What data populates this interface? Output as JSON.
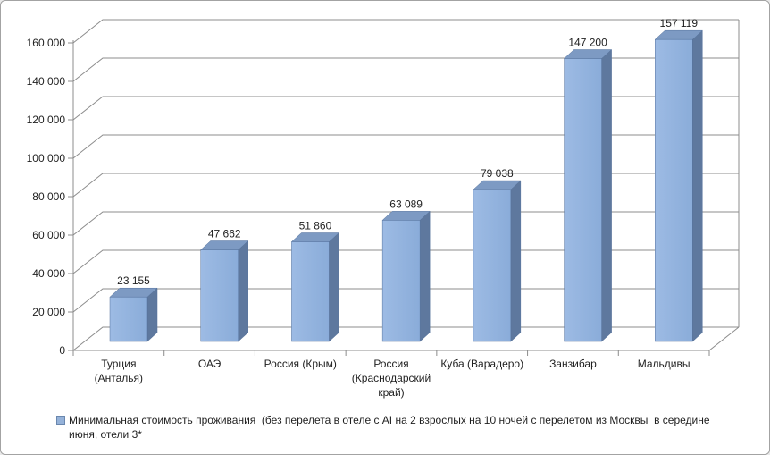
{
  "window": {
    "background": "#ffffff",
    "border_color": "#a3a3a3"
  },
  "chart_data": {
    "type": "bar",
    "projection": "3d",
    "title": "",
    "xlabel": "",
    "ylabel": "",
    "categories": [
      "Турция (Анталья)",
      "ОАЭ",
      "Россия (Крым)",
      "Россия (Краснодарский край)",
      "Куба (Варадеро)",
      "Занзибар",
      "Мальдивы"
    ],
    "category_lines": [
      [
        "Турция",
        "(Анталья)"
      ],
      [
        "ОАЭ"
      ],
      [
        "Россия (Крым)"
      ],
      [
        "Россия",
        "(Краснодарский",
        "край)"
      ],
      [
        "Куба (Варадеро)"
      ],
      [
        "Занзибар"
      ],
      [
        "Мальдивы"
      ]
    ],
    "values": [
      23155,
      47662,
      51860,
      63089,
      79038,
      147200,
      157119
    ],
    "data_labels": [
      "23 155",
      "47 662",
      "51 860",
      "63 089",
      "79 038",
      "147 200",
      "157 119"
    ],
    "ylim": [
      0,
      160000
    ],
    "ytick_step": 20000,
    "ytick_labels": [
      "0",
      "20 000",
      "40 000",
      "60 000",
      "80 000",
      "100 000",
      "120 000",
      "140 000",
      "160 000"
    ],
    "grid": true,
    "legend_position": "bottom",
    "number_format": "space-thousands",
    "series": [
      {
        "name": "Минимальная стоимость проживания  (без перелета в отеле с AI на 2 взрослых на 10 ночей с перелетом из Москвы  в середине июня, отели 3*"
      }
    ],
    "colors": {
      "bar_front_light": "#9dbbe4",
      "bar_front_dark": "#8aacd9",
      "bar_top": "#7d9ac3",
      "bar_side": "#5e789e",
      "bar_edge": "#54719b",
      "grid": "#8c8c8c",
      "axis": "#8c8c8c",
      "text": "#1f1f1f",
      "legend_marker": "#95b2d9",
      "legend_marker_border": "#6a87ae"
    }
  }
}
